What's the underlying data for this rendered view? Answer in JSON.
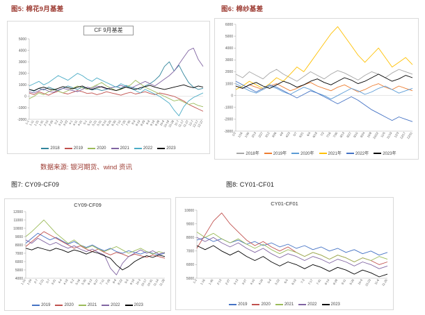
{
  "page": {
    "fig5_label": "图5: 棉花9月基差",
    "fig6_label": "图6: 棉纱基差",
    "fig7_label": "图7: CY09-CF09",
    "fig8_label": "图8: CY01-CF01",
    "source_note": "数据来源: 银河期货、wind 资讯"
  },
  "colors": {
    "heading": "#9c3a31",
    "source_note": "#9c3a31",
    "panel_border": "#d9d9d9",
    "axis": "#b0b0b0",
    "tick_text": "#555555"
  },
  "chart_data": [
    {
      "type": "line",
      "title": "CF 9月基差",
      "ylim": [
        -2000,
        5000
      ],
      "yticks": [
        5000,
        4000,
        3000,
        2000,
        1000,
        0,
        -1000,
        -2000
      ],
      "legend_position": "bottom",
      "grid": false,
      "x_labels": [
        "1-1",
        "1-11",
        "1-21",
        "1-31",
        "2-10",
        "2-20",
        "3-2",
        "3-12",
        "3-22",
        "4-1",
        "4-11",
        "4-21",
        "5-1",
        "5-11",
        "5-21",
        "5-31",
        "6-10",
        "6-20",
        "6-30",
        "7-10",
        "7-20",
        "7-30",
        "8-9",
        "8-19",
        "8-29",
        "9-8",
        "9-18",
        "9-28",
        "10-8",
        "10-18",
        "10-28",
        "11-7",
        "11-17",
        "11-27",
        "12-7",
        "12-17",
        "12-27"
      ],
      "series": [
        {
          "name": "2018",
          "color": "#31859c",
          "values": [
            600,
            450,
            700,
            550,
            800,
            650,
            500,
            700,
            900,
            750,
            600,
            800,
            700,
            550,
            650,
            500,
            600,
            750,
            850,
            700,
            950,
            800,
            700,
            600,
            900,
            1100,
            1400,
            1800,
            2600,
            3000,
            2200,
            2700,
            1900,
            1200,
            800,
            600,
            700
          ]
        },
        {
          "name": "2019",
          "color": "#c0504d",
          "values": [
            300,
            150,
            400,
            250,
            100,
            300,
            450,
            300,
            200,
            350,
            500,
            400,
            250,
            300,
            150,
            250,
            400,
            300,
            200,
            100,
            250,
            350,
            200,
            300,
            400,
            250,
            150,
            300,
            200,
            100,
            0,
            -200,
            -400,
            -700,
            -900,
            -1100,
            -1300
          ]
        },
        {
          "name": "2020",
          "color": "#9bbb59",
          "values": [
            -200,
            0,
            300,
            150,
            400,
            600,
            450,
            300,
            500,
            700,
            900,
            750,
            600,
            800,
            1000,
            1200,
            900,
            700,
            500,
            600,
            800,
            1000,
            1400,
            1100,
            800,
            600,
            400,
            200,
            0,
            -200,
            -400,
            -300,
            -500,
            -700,
            -600,
            -800,
            -900
          ]
        },
        {
          "name": "2021",
          "color": "#8064a2",
          "values": [
            400,
            300,
            500,
            650,
            450,
            350,
            550,
            700,
            600,
            500,
            400,
            600,
            800,
            700,
            900,
            800,
            650,
            750,
            850,
            950,
            800,
            700,
            900,
            1100,
            1300,
            1100,
            900,
            1200,
            1500,
            1800,
            2200,
            2800,
            3400,
            4000,
            4200,
            3200,
            2600
          ]
        },
        {
          "name": "2022",
          "color": "#4bacc6",
          "values": [
            900,
            1100,
            1300,
            1000,
            1200,
            1500,
            1800,
            1600,
            1400,
            1700,
            2000,
            1800,
            1500,
            1300,
            1600,
            1400,
            1200,
            1000,
            800,
            1100,
            900,
            700,
            500,
            300,
            600,
            400,
            200,
            0,
            -300,
            -600,
            -1200,
            -1700,
            -900,
            -400,
            -100,
            100,
            300
          ]
        },
        {
          "name": "2023",
          "color": "#000000",
          "values": [
            600,
            500,
            700,
            800,
            650,
            550,
            700,
            850,
            750,
            650,
            800,
            900,
            700,
            600,
            750,
            850,
            700,
            600,
            500,
            650,
            800,
            700,
            600,
            750,
            850,
            950,
            800,
            700,
            600,
            700,
            800,
            900,
            1000,
            850,
            750,
            900,
            800
          ]
        }
      ]
    },
    {
      "type": "line",
      "title": "棉纱基差",
      "ylim": [
        -3000,
        6000
      ],
      "yticks": [
        6000,
        5000,
        4000,
        3000,
        2000,
        1000,
        0,
        -1000,
        -2000,
        -3000
      ],
      "legend_position": "bottom",
      "grid": false,
      "x_labels": [
        "1/2",
        "1/16",
        "1/30",
        "2/13",
        "2/27",
        "3/12",
        "3/26",
        "4/9",
        "4/23",
        "5/7",
        "5/21",
        "6/4",
        "6/18",
        "7/2",
        "7/16",
        "7/30",
        "8/13",
        "8/27",
        "9/10",
        "9/24",
        "10/8",
        "10/22",
        "11/5",
        "11/19",
        "12/3",
        "12/17",
        "12/31"
      ],
      "series": [
        {
          "name": "2018年",
          "color": "#a6a6a6",
          "values": [
            1800,
            1500,
            2000,
            1700,
            1400,
            1900,
            2200,
            1800,
            1500,
            1200,
            1600,
            2000,
            1700,
            1400,
            1800,
            2100,
            1900,
            1600,
            1300,
            1700,
            2000,
            1800,
            1500,
            1900,
            2200,
            2000,
            1800
          ]
        },
        {
          "name": "2019年",
          "color": "#ed7d31",
          "values": [
            800,
            600,
            900,
            700,
            500,
            800,
            1000,
            700,
            400,
            600,
            900,
            1100,
            800,
            600,
            400,
            700,
            900,
            600,
            300,
            500,
            800,
            1000,
            700,
            500,
            800,
            600,
            400
          ]
        },
        {
          "name": "2020年",
          "color": "#5b9bd5",
          "values": [
            1000,
            700,
            400,
            200,
            500,
            800,
            600,
            300,
            100,
            400,
            700,
            500,
            200,
            0,
            -300,
            0,
            300,
            600,
            400,
            100,
            300,
            600,
            800,
            500,
            200,
            400,
            600
          ]
        },
        {
          "name": "2021年",
          "color": "#ffc000",
          "values": [
            500,
            800,
            1200,
            900,
            600,
            1000,
            1500,
            1200,
            1800,
            2400,
            2000,
            2800,
            3600,
            4400,
            5200,
            5800,
            5000,
            4200,
            3400,
            2800,
            3400,
            4000,
            3200,
            2400,
            2800,
            3200,
            2600
          ]
        },
        {
          "name": "2022年",
          "color": "#4472c4",
          "values": [
            1200,
            900,
            600,
            300,
            600,
            900,
            700,
            400,
            100,
            -200,
            100,
            400,
            200,
            -100,
            -400,
            -700,
            -400,
            -100,
            -400,
            -800,
            -1200,
            -1500,
            -1800,
            -2100,
            -1800,
            -2000,
            -2200
          ]
        },
        {
          "name": "2023年",
          "color": "#000000",
          "values": [
            800,
            600,
            900,
            1100,
            800,
            600,
            900,
            1200,
            1000,
            700,
            900,
            1200,
            1400,
            1100,
            900,
            1200,
            1500,
            1300,
            1000,
            1200,
            1500,
            1800,
            1500,
            1200,
            1400,
            1700,
            1500
          ]
        }
      ]
    },
    {
      "type": "line",
      "title": "CY09-CF09",
      "ylim": [
        4000,
        12000
      ],
      "yticks": [
        12000,
        11000,
        10000,
        9000,
        8000,
        7000,
        6000,
        5000,
        4000
      ],
      "legend_position": "bottom",
      "grid": false,
      "x_labels": [
        "1-10",
        "1-24",
        "2-7",
        "2-21",
        "3-7",
        "3-21",
        "4-4",
        "4-18",
        "5-2",
        "5-16",
        "5-30",
        "6-13",
        "6-27",
        "7-11",
        "7-25",
        "8-8",
        "8-22",
        "9-5",
        "9-19",
        "10-3",
        "10-17",
        "10-31",
        "11-14",
        "11-28"
      ],
      "series": [
        {
          "name": "2019",
          "color": "#4472c4",
          "values": [
            8200,
            8800,
            9400,
            9000,
            8600,
            8900,
            8500,
            8100,
            8400,
            8000,
            7700,
            8000,
            7600,
            7300,
            7600,
            7200,
            7000,
            7300,
            7100,
            6900,
            7200,
            7000,
            6800,
            7000
          ]
        },
        {
          "name": "2020",
          "color": "#c0504d",
          "values": [
            7800,
            8400,
            9000,
            9600,
            9200,
            8800,
            8400,
            8000,
            7600,
            7900,
            7500,
            7200,
            7500,
            7100,
            6800,
            7100,
            6900,
            6600,
            6900,
            6700,
            6500,
            6800,
            6600,
            6400
          ]
        },
        {
          "name": "2021",
          "color": "#9bbb59",
          "values": [
            9000,
            9600,
            10300,
            11000,
            10200,
            9400,
            8800,
            8200,
            8600,
            8000,
            7600,
            7900,
            7500,
            7200,
            7500,
            7800,
            7400,
            7000,
            7300,
            7600,
            7200,
            6900,
            7200,
            7000
          ]
        },
        {
          "name": "2022",
          "color": "#8064a2",
          "values": [
            8600,
            8200,
            8800,
            8400,
            8000,
            8300,
            7900,
            7600,
            7900,
            7500,
            7200,
            7500,
            7100,
            6800,
            5200,
            4400,
            5800,
            6600,
            7000,
            7400,
            7000,
            7300,
            6900,
            7100
          ]
        },
        {
          "name": "2023",
          "color": "#000000",
          "values": [
            7600,
            7400,
            7700,
            7500,
            7300,
            7600,
            7400,
            7100,
            7400,
            7200,
            6900,
            7200,
            7000,
            6700,
            6400,
            5600,
            5000,
            5400,
            6000,
            6400,
            6700,
            6500,
            6800,
            6600
          ]
        }
      ]
    },
    {
      "type": "line",
      "title": "CY01-CF01",
      "ylim": [
        5000,
        10000
      ],
      "yticks": [
        10000,
        9000,
        8000,
        7000,
        6000,
        5000
      ],
      "legend_position": "bottom",
      "grid": false,
      "x_labels": [
        "1-2",
        "1-16",
        "1-30",
        "2-13",
        "2-27",
        "3-13",
        "3-27",
        "4-10",
        "4-24",
        "5-8",
        "5-22",
        "6-5",
        "6-19",
        "7-3",
        "7-17",
        "7-31",
        "8-14",
        "8-28",
        "9-11",
        "9-25",
        "10-9",
        "10-23",
        "11-6",
        "11-20"
      ],
      "series": [
        {
          "name": "2019",
          "color": "#4472c4",
          "values": [
            7800,
            8000,
            7700,
            7900,
            7600,
            7800,
            7500,
            7700,
            7400,
            7600,
            7300,
            7500,
            7200,
            7400,
            7100,
            7300,
            7000,
            7200,
            6900,
            7100,
            6800,
            7000,
            6700,
            6900
          ]
        },
        {
          "name": "2020",
          "color": "#c0504d",
          "values": [
            7200,
            8200,
            9200,
            9800,
            9000,
            8400,
            7800,
            7400,
            7700,
            7300,
            7000,
            7300,
            6900,
            6600,
            6900,
            6700,
            6400,
            6700,
            6500,
            6200,
            6500,
            6300,
            6000,
            6200
          ]
        },
        {
          "name": "2021",
          "color": "#9bbb59",
          "values": [
            8400,
            8000,
            8300,
            7900,
            7600,
            7900,
            7500,
            7200,
            7500,
            7100,
            6800,
            7100,
            6900,
            6600,
            6900,
            6700,
            6400,
            6700,
            6500,
            6200,
            6500,
            6300,
            6600,
            6400
          ]
        },
        {
          "name": "2022",
          "color": "#8064a2",
          "values": [
            8000,
            7700,
            8000,
            7600,
            7300,
            7600,
            7200,
            6900,
            7200,
            6800,
            6500,
            6800,
            6600,
            6300,
            6600,
            6400,
            6100,
            6400,
            6200,
            5900,
            6200,
            6000,
            5700,
            5900
          ]
        },
        {
          "name": "2023",
          "color": "#000000",
          "values": [
            7400,
            7100,
            7400,
            7000,
            6700,
            7000,
            6600,
            6300,
            6600,
            6200,
            5900,
            6200,
            6000,
            5700,
            6000,
            5800,
            5500,
            5800,
            5600,
            5300,
            5600,
            5400,
            5100,
            5300
          ]
        }
      ]
    }
  ]
}
